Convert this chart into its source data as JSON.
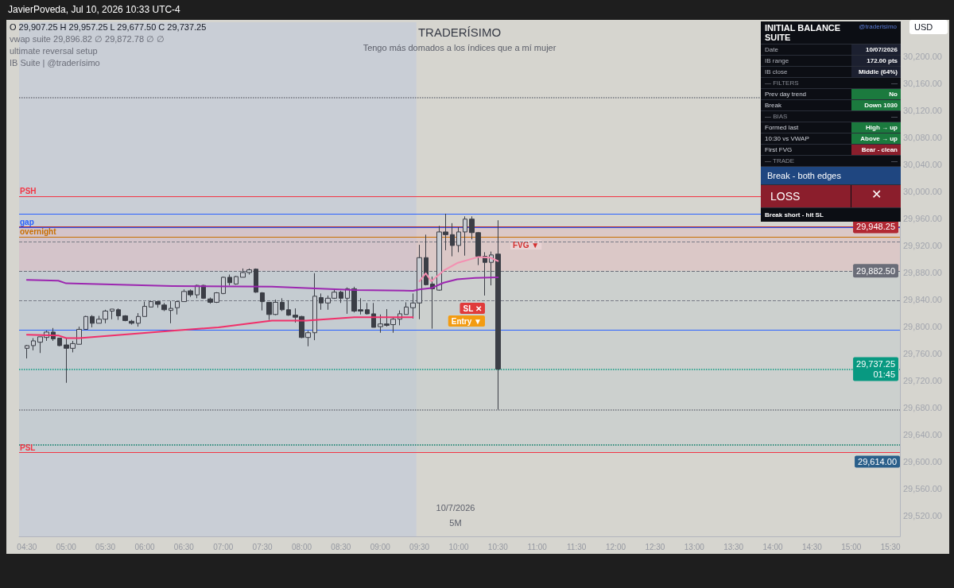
{
  "chart_data": [
    {
      "type": "candlestick",
      "title": "TRADERÍSIMO",
      "subtitle": "Tengo más domados a los índices que a mí mujer",
      "x": [
        4.5,
        4.5833,
        4.6667,
        4.75,
        4.8333,
        4.9167,
        5,
        5.0833,
        5.1667,
        5.25,
        5.3333,
        5.4167,
        5.5,
        5.5833,
        5.6667,
        5.75,
        5.8333,
        5.9167,
        6,
        6.0833,
        6.1667,
        6.25,
        6.3333,
        6.4167,
        6.5,
        6.5833,
        6.6667,
        6.75,
        6.8333,
        6.9167,
        7,
        7.0833,
        7.1667,
        7.25,
        7.3333,
        7.4167,
        7.5,
        7.5833,
        7.6667,
        7.75,
        7.8333,
        7.9167,
        8,
        8.0833,
        8.1667,
        8.25,
        8.3333,
        8.4167,
        8.5,
        8.5833,
        8.6667,
        8.75,
        8.8333,
        8.9167,
        9,
        9.0833,
        9.1667,
        9.25,
        9.3333,
        9.4167,
        9.5,
        9.5833,
        9.6667,
        9.75,
        9.8333,
        9.9167,
        10,
        10.0833,
        10.1667,
        10.25,
        10.3333,
        10.4167,
        10.5
      ],
      "ohlc": [
        [
          29768,
          29773,
          29753,
          29772
        ],
        [
          29772,
          29783,
          29765,
          29779
        ],
        [
          29777,
          29785,
          29761,
          29785
        ],
        [
          29784,
          29794,
          29779,
          29792
        ],
        [
          29792,
          29798,
          29779,
          29782
        ],
        [
          29783,
          29783,
          29771,
          29772
        ],
        [
          29773,
          29783,
          29717,
          29768
        ],
        [
          29768,
          29779,
          29762,
          29775
        ],
        [
          29774,
          29800,
          29774,
          29796
        ],
        [
          29796,
          29816,
          29796,
          29815
        ],
        [
          29815,
          29817,
          29799,
          29805
        ],
        [
          29805,
          29816,
          29805,
          29811
        ],
        [
          29811,
          29825,
          29805,
          29823
        ],
        [
          29823,
          29826,
          29811,
          29826
        ],
        [
          29825,
          29827,
          29810,
          29816
        ],
        [
          29816,
          29817,
          29808,
          29809
        ],
        [
          29808,
          29810,
          29803,
          29805
        ],
        [
          29805,
          29820,
          29800,
          29815
        ],
        [
          29815,
          29837,
          29815,
          29830
        ],
        [
          29829,
          29838,
          29829,
          29837
        ],
        [
          29837,
          29838,
          29828,
          29833
        ],
        [
          29832,
          29835,
          29823,
          29825
        ],
        [
          29824,
          29838,
          29805,
          29827
        ],
        [
          29828,
          29838,
          29818,
          29837
        ],
        [
          29837,
          29855,
          29837,
          29852
        ],
        [
          29853,
          29855,
          29844,
          29847
        ],
        [
          29847,
          29862,
          29842,
          29861
        ],
        [
          29861,
          29862,
          29841,
          29842
        ],
        [
          29841,
          29843,
          29834,
          29836
        ],
        [
          29836,
          29851,
          29835,
          29850
        ],
        [
          29849,
          29874,
          29848,
          29873
        ],
        [
          29873,
          29877,
          29861,
          29865
        ],
        [
          29863,
          29875,
          29862,
          29874
        ],
        [
          29873,
          29886,
          29873,
          29880
        ],
        [
          29880,
          29886,
          29877,
          29884
        ],
        [
          29885,
          29886,
          29850,
          29851
        ],
        [
          29850,
          29851,
          29824,
          29837
        ],
        [
          29836,
          29836,
          29810,
          29818
        ],
        [
          29818,
          29840,
          29817,
          29836
        ],
        [
          29836,
          29842,
          29823,
          29825
        ],
        [
          29825,
          29839,
          29816,
          29817
        ],
        [
          29817,
          29827,
          29806,
          29814
        ],
        [
          29815,
          29816,
          29783,
          29784
        ],
        [
          29784,
          29794,
          29771,
          29791
        ],
        [
          29791,
          29879,
          29780,
          29845
        ],
        [
          29843,
          29849,
          29825,
          29835
        ],
        [
          29835,
          29846,
          29825,
          29842
        ],
        [
          29842,
          29856,
          29841,
          29851
        ],
        [
          29851,
          29853,
          29835,
          29842
        ],
        [
          29842,
          29858,
          29819,
          29856
        ],
        [
          29856,
          29859,
          29821,
          29823
        ],
        [
          29825,
          29842,
          29818,
          29823
        ],
        [
          29825,
          29835,
          29818,
          29819
        ],
        [
          29819,
          29835,
          29799,
          29799
        ],
        [
          29800,
          29818,
          29791,
          29804
        ],
        [
          29804,
          29826,
          29800,
          29802
        ],
        [
          29803,
          29814,
          29791,
          29811
        ],
        [
          29811,
          29824,
          29802,
          29819
        ],
        [
          29818,
          29836,
          29818,
          29829
        ],
        [
          29828,
          29849,
          29812,
          29835
        ],
        [
          29835,
          29921,
          29811,
          29902
        ],
        [
          29902,
          29936,
          29861,
          29862
        ],
        [
          29863,
          29874,
          29797,
          29856
        ],
        [
          29854,
          29949,
          29853,
          29940
        ],
        [
          29940,
          29967,
          29913,
          29936
        ],
        [
          29936,
          29953,
          29904,
          29920
        ],
        [
          29920,
          29947,
          29910,
          29940
        ],
        [
          29940,
          29963,
          29905,
          29959
        ],
        [
          29959,
          29963,
          29929,
          29939
        ],
        [
          29939,
          29940,
          29891,
          29904
        ],
        [
          29904,
          29910,
          29846,
          29895
        ],
        [
          29895,
          29911,
          29861,
          29906
        ],
        [
          29907.25,
          29957.25,
          29677.5,
          29737.25
        ]
      ],
      "series": [
        {
          "type": "line",
          "color": "#9c27b0",
          "x": [
            4.5,
            4.9,
            5,
            6.35,
            7.62,
            8.67,
            9.42,
            9.5,
            9.65,
            9.81,
            9.98,
            10.21,
            10.5
          ],
          "values": [
            29869,
            29868,
            29864,
            29860,
            29859,
            29854,
            29853,
            29855,
            29857,
            29865,
            29870,
            29872,
            29873
          ]
        },
        {
          "type": "line",
          "color": "#f0306a",
          "x": [
            4.5,
            4.9,
            5,
            5.17,
            6.35,
            6.94,
            7.62,
            8.06,
            8.67,
            9.4167
          ],
          "values": [
            29788,
            29787,
            29783,
            29783,
            29794,
            29799,
            29809,
            29809,
            29814,
            29814
          ]
        },
        {
          "type": "line",
          "color": "#f48fb1",
          "x": [
            9.5,
            9.58,
            9.65,
            9.81,
            9.98,
            10.25,
            10.4,
            10.5
          ],
          "values": [
            29867,
            29879,
            29867,
            29883,
            29894,
            29903,
            29902,
            29897
          ]
        }
      ],
      "xlim": [
        4.4,
        15.62
      ],
      "xticks": [
        {
          "value": 4.5,
          "label": "04:30"
        },
        {
          "value": 5,
          "label": "05:00"
        },
        {
          "value": 5.5,
          "label": "05:30"
        },
        {
          "value": 6,
          "label": "06:00"
        },
        {
          "value": 6.5,
          "label": "06:30"
        },
        {
          "value": 7,
          "label": "07:00"
        },
        {
          "value": 7.5,
          "label": "07:30"
        },
        {
          "value": 8,
          "label": "08:00"
        },
        {
          "value": 8.5,
          "label": "08:30"
        },
        {
          "value": 9,
          "label": "09:00"
        },
        {
          "value": 9.5,
          "label": "09:30"
        },
        {
          "value": 10,
          "label": "10:00"
        },
        {
          "value": 10.5,
          "label": "10:30"
        },
        {
          "value": 11,
          "label": "11:00"
        },
        {
          "value": 11.5,
          "label": "11:30"
        },
        {
          "value": 12,
          "label": "12:00"
        },
        {
          "value": 12.5,
          "label": "12:30"
        },
        {
          "value": 13,
          "label": "13:00"
        },
        {
          "value": 13.5,
          "label": "13:30"
        },
        {
          "value": 14,
          "label": "14:00"
        },
        {
          "value": 14.5,
          "label": "14:30"
        },
        {
          "value": 15,
          "label": "15:00"
        },
        {
          "value": 15.5,
          "label": "15:30"
        }
      ],
      "ylim": [
        29490,
        30250
      ],
      "yticks": [
        {
          "value": 29520,
          "label": "29,520.00"
        },
        {
          "value": 29560,
          "label": "29,560.00"
        },
        {
          "value": 29600,
          "label": "29,600.00"
        },
        {
          "value": 29640,
          "label": "29,640.00"
        },
        {
          "value": 29680,
          "label": "29,680.00"
        },
        {
          "value": 29720,
          "label": "29,720.00"
        },
        {
          "value": 29760,
          "label": "29,760.00"
        },
        {
          "value": 29800,
          "label": "29,800.00"
        },
        {
          "value": 29840,
          "label": "29,840.00"
        },
        {
          "value": 29880,
          "label": "29,880.00"
        },
        {
          "value": 29920,
          "label": "29,920.00"
        },
        {
          "value": 29960,
          "label": "29,960.00"
        },
        {
          "value": 30000,
          "label": "30,000.00"
        },
        {
          "value": 30040,
          "label": "30,040.00"
        },
        {
          "value": 30080,
          "label": "30,080.00"
        },
        {
          "value": 30120,
          "label": "30,120.00"
        },
        {
          "value": 30160,
          "label": "30,160.00"
        },
        {
          "value": 30200,
          "label": "30,200.00"
        }
      ],
      "ref_lines": [
        {
          "axis": "y",
          "value": 29948.25,
          "label": "29,948.25",
          "color": "#b22833",
          "line_style": "solid"
        },
        {
          "axis": "y",
          "value": 29882.5,
          "label": "29,882.50",
          "color": "#6a6d78",
          "line_style": "dashed"
        },
        {
          "axis": "y",
          "value": 29737.25,
          "label": "29,737.25\n01:45",
          "color": "#089981",
          "line_style": "dotted"
        },
        {
          "axis": "y",
          "value": 29993,
          "label": "PSH",
          "color": "#f23645",
          "line_style": "solid"
        },
        {
          "axis": "y",
          "value": 29614,
          "label": "PSL",
          "color": "#f23645",
          "line_style": "solid"
        },
        {
          "axis": "y",
          "value": 29947,
          "label": "gap",
          "color": "#2962ff",
          "line_style": "solid"
        },
        {
          "axis": "y",
          "value": 29933,
          "label": "overnight",
          "color": "#c86f00",
          "line_style": "solid"
        },
        {
          "axis": "y",
          "value": 29967,
          "label": null,
          "color": "#2962ff",
          "line_style": "solid"
        },
        {
          "axis": "y",
          "value": 29795,
          "label": null,
          "color": "#2962ff",
          "line_style": "solid"
        },
        {
          "axis": "y",
          "value": 29925,
          "label": null,
          "color": "#787b86",
          "line_style": "dashed"
        },
        {
          "axis": "y",
          "value": 29839,
          "label": null,
          "color": "#787b86",
          "line_style": "dashed"
        },
        {
          "axis": "y",
          "value": 29625,
          "label": null,
          "color": "#067a66",
          "line_style": "dotted"
        },
        {
          "axis": "y",
          "value": 30139,
          "label": null,
          "color": "#6f727c",
          "line_style": "dotted"
        },
        {
          "axis": "y",
          "value": 29677,
          "label": null,
          "color": "#6f727c",
          "line_style": "dotted"
        }
      ],
      "bands": [
        {
          "axis": "x",
          "from": 4.4,
          "to": 9.46,
          "color": "#c9ced6",
          "label": null
        },
        {
          "axis": "y",
          "from": 29882.5,
          "to": 29948.25,
          "color": "#e3b9bc",
          "label": null
        },
        {
          "axis": "y",
          "from": 29614,
          "to": 29882.5,
          "color": "#c2cacb",
          "label": "29,614.00"
        }
      ],
      "annotations": [
        "JavierPoveda, Jul 10, 2026 10:33 UTC-4",
        "O 29,907.25  H 29,957.25  L 29,677.50  C 29,737.25",
        "vwap suite  29,896.82  ∅  29,872.78  ∅  ∅",
        "ultimate reversal setup",
        "IB Suite | @traderísimo",
        "10/7/2026",
        "5M",
        "USD",
        "FVG ▼",
        "SL ✕",
        "Entry ▼"
      ],
      "grid": false,
      "marker": "none"
    },
    {
      "type": "other",
      "title": "INITIAL BALANCE SUITE",
      "annotations": [
        "@traderisimo",
        "Date",
        "10/07/2026",
        "IB range",
        "172.00 pts",
        "IB close",
        "Middle (64%)",
        "— FILTERS",
        "—",
        "Prev day trend",
        "No",
        "Break",
        "Down 1030",
        "— BIAS",
        "—",
        "Formed last",
        "High → up",
        "10:30 vs VWAP",
        "Above → up",
        "First FVG",
        "Bear - clean",
        "— TRADE",
        "—",
        "Break - both edges",
        null,
        "LOSS",
        "✕",
        "Break short - hit SL",
        null
      ]
    }
  ]
}
